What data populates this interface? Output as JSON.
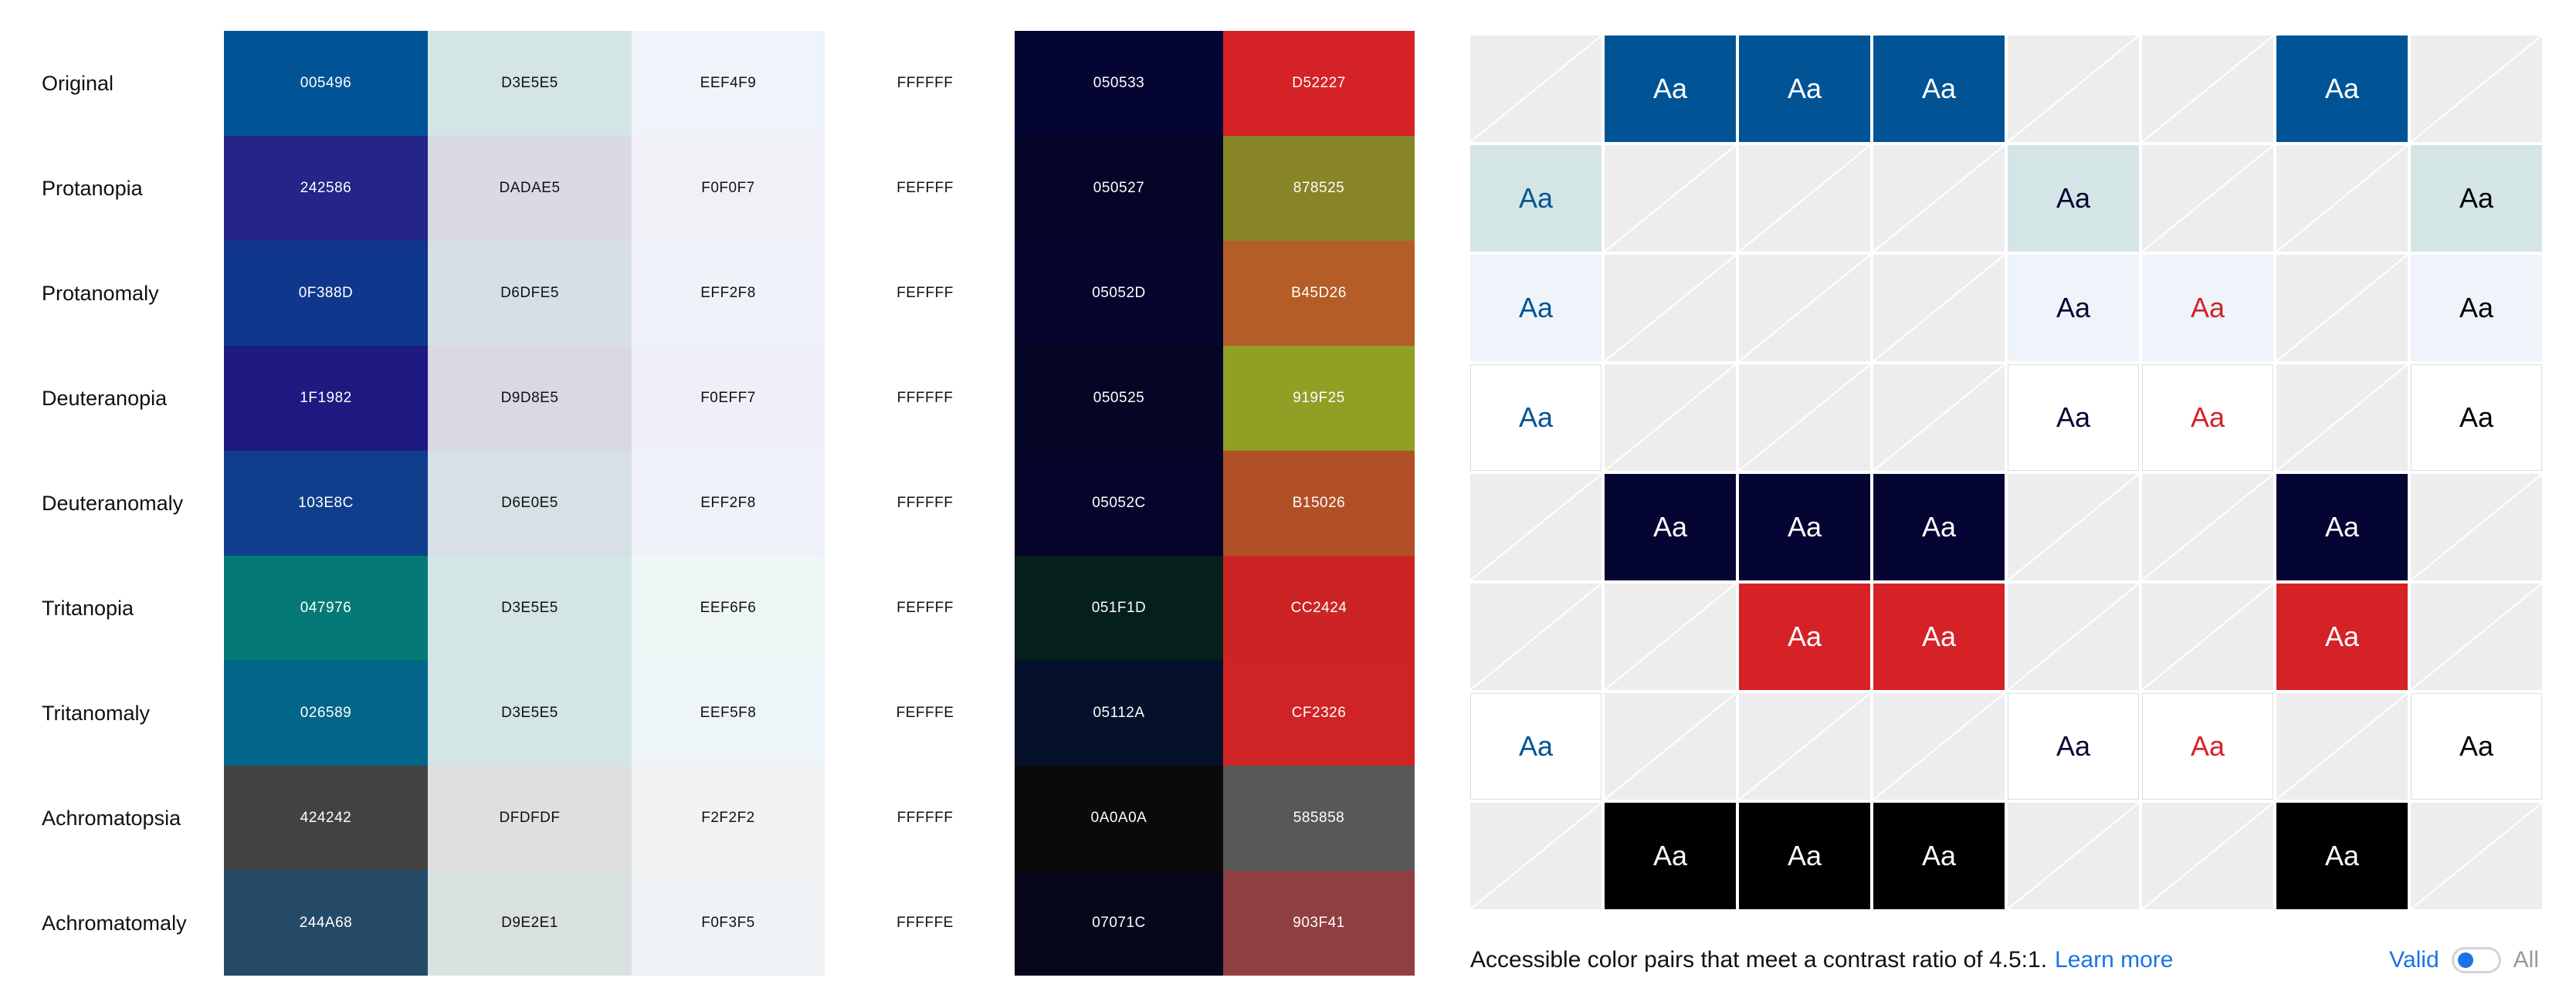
{
  "rows": [
    "Original",
    "Protanopia",
    "Protanomaly",
    "Deuteranopia",
    "Deuteranomaly",
    "Tritanopia",
    "Tritanomaly",
    "Achromatopsia",
    "Achromatomaly"
  ],
  "palette": {
    "columns": [
      {
        "name": "c1",
        "values": [
          "005496",
          "242586",
          "0F388D",
          "1F1982",
          "103E8C",
          "047976",
          "026589",
          "424242",
          "244A68"
        ]
      },
      {
        "name": "c2",
        "values": [
          "D3E5E5",
          "DADAE5",
          "D6DFE5",
          "D9D8E5",
          "D6E0E5",
          "D3E5E5",
          "D3E5E5",
          "DFDFDF",
          "D9E2E1"
        ]
      },
      {
        "name": "c3",
        "values": [
          "EEF4F9",
          "F0F0F7",
          "EFF2F8",
          "F0EFF7",
          "EFF2F8",
          "EEF6F6",
          "EEF5F8",
          "F2F2F2",
          "F0F3F5"
        ]
      },
      {
        "name": "c4",
        "values": [
          "FFFFFF",
          "FEFFFF",
          "FEFFFF",
          "FFFFFF",
          "FFFFFF",
          "FEFFFF",
          "FEFFFE",
          "FFFFFF",
          "FFFFFE"
        ]
      },
      {
        "name": "c5",
        "values": [
          "050533",
          "050527",
          "05052D",
          "050525",
          "05052C",
          "051F1D",
          "05112A",
          "0A0A0A",
          "07071C"
        ]
      },
      {
        "name": "c6",
        "values": [
          "D52227",
          "878525",
          "B45D26",
          "919F25",
          "B15026",
          "CC2424",
          "CF2326",
          "585858",
          "903F41"
        ]
      }
    ]
  },
  "contrast_grid": {
    "sample_text": "Aa",
    "colors": [
      "005496",
      "D3E5E5",
      "EEF4F9",
      "FFFFFF",
      "050533",
      "D52227",
      "000000"
    ],
    "rows": [
      [
        "",
        "c0-fff",
        "c0-fff",
        "c0-fff",
        "",
        "",
        "c0-fff",
        ""
      ],
      [
        "c1-005496",
        "",
        "",
        "",
        "c1-050533",
        "",
        "",
        "c1-000000"
      ],
      [
        "c2-005496",
        "",
        "",
        "",
        "c2-050533",
        "c2-D52227",
        "",
        "c2-000000"
      ],
      [
        "c3-005496",
        "",
        "",
        "",
        "c3-050533",
        "c3-D52227",
        "",
        "c3-000000"
      ],
      [
        "",
        "c4-fff",
        "c4-fff",
        "c4-fff",
        "",
        "",
        "c4-fff",
        ""
      ],
      [
        "",
        "",
        "c5-fff",
        "c5-fff",
        "",
        "",
        "c5-fff",
        ""
      ],
      [
        "c3-005496",
        "",
        "",
        "",
        "c3-050533",
        "c3-D52227",
        "",
        "c3-000000"
      ],
      [
        "",
        "c6-fff",
        "c6-fff",
        "c6-fff",
        "",
        "",
        "c6-fff",
        ""
      ]
    ]
  },
  "footer": {
    "text": "Accessible color pairs that meet a contrast ratio of 4.5:1.",
    "link": "Learn more",
    "toggle_on_label": "Valid",
    "toggle_off_label": "All",
    "toggle_state": "valid"
  }
}
